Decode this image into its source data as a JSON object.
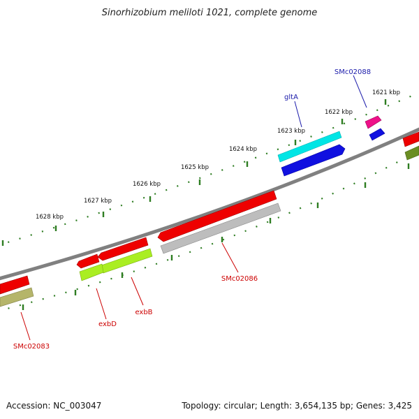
{
  "title": "Sinorhizobium meliloti 1021, complete genome",
  "footer": {
    "accession": "Accession: NC_003047",
    "topology": "Topology: circular; Length: 3,654,135 bp; Genes: 3,425"
  },
  "colors": {
    "backbone": "#808080",
    "tick": "#2e7d22",
    "label_red": "#cc0000",
    "label_blue": "#1a1aaa"
  },
  "tick_labels": [
    "1621 kbp",
    "1622 kbp",
    "1623 kbp",
    "1624 kbp",
    "1625 kbp",
    "1626 kbp",
    "1627 kbp",
    "1628 kbp"
  ],
  "gene_labels": [
    {
      "id": "gltA",
      "text": "gltA",
      "color": "#1a1aaa"
    },
    {
      "id": "smc02088",
      "text": "SMc02088",
      "color": "#1a1aaa"
    },
    {
      "id": "smc02086",
      "text": "SMc02086",
      "color": "#cc0000"
    },
    {
      "id": "exbb",
      "text": "exbB",
      "color": "#cc0000"
    },
    {
      "id": "exbd",
      "text": "exbD",
      "color": "#cc0000"
    },
    {
      "id": "smc02083",
      "text": "SMc02083",
      "color": "#cc0000"
    }
  ],
  "features": [
    {
      "name": "gltA",
      "strand": "outer",
      "color": "#00e5e5"
    },
    {
      "name": "gltA-cds",
      "strand": "outer",
      "color": "#1010e0"
    },
    {
      "name": "SMc02088",
      "strand": "outer",
      "color": "#ee1188"
    },
    {
      "name": "SMc02088-cds",
      "strand": "outer",
      "color": "#1010e0"
    },
    {
      "name": "SMc02086",
      "strand": "inner",
      "color": "#ee0000"
    },
    {
      "name": "SMc02086-cds",
      "strand": "inner",
      "color": "#bdbdbd"
    },
    {
      "name": "exbB",
      "strand": "inner",
      "color": "#ee0000"
    },
    {
      "name": "exbB-cds",
      "strand": "inner",
      "color": "#aaee22"
    },
    {
      "name": "exbD",
      "strand": "inner",
      "color": "#ee0000"
    },
    {
      "name": "SMc02083",
      "strand": "inner",
      "color": "#ee0000"
    },
    {
      "name": "SMc02083-cds",
      "strand": "inner",
      "color": "#b5b56a"
    },
    {
      "name": "edge-gene",
      "strand": "inner",
      "color": "#ee0000"
    },
    {
      "name": "edge-gene-cds",
      "strand": "inner",
      "color": "#6b8e23"
    }
  ]
}
